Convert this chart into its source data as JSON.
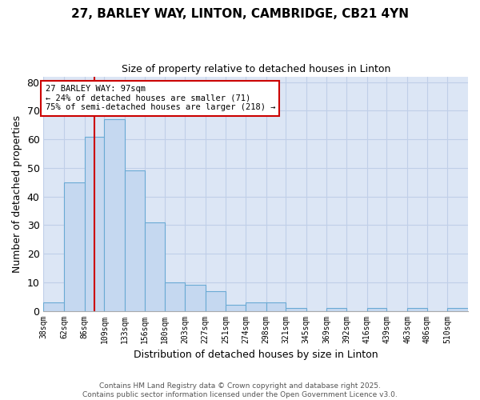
{
  "title1": "27, BARLEY WAY, LINTON, CAMBRIDGE, CB21 4YN",
  "title2": "Size of property relative to detached houses in Linton",
  "xlabel": "Distribution of detached houses by size in Linton",
  "ylabel": "Number of detached properties",
  "bin_edges": [
    38,
    62,
    86,
    109,
    133,
    156,
    180,
    203,
    227,
    251,
    274,
    298,
    321,
    345,
    369,
    392,
    416,
    439,
    463,
    486,
    510
  ],
  "bar_heights": [
    3,
    45,
    61,
    67,
    49,
    31,
    10,
    9,
    7,
    2,
    3,
    3,
    1,
    0,
    1,
    0,
    1,
    0,
    1,
    0,
    1
  ],
  "bar_color": "#c5d8f0",
  "bar_edge_color": "#6aaad4",
  "subject_value": 97,
  "vline_color": "#cc0000",
  "annotation_text": "27 BARLEY WAY: 97sqm\n← 24% of detached houses are smaller (71)\n75% of semi-detached houses are larger (218) →",
  "annotation_box_color": "#ffffff",
  "annotation_border_color": "#cc0000",
  "ylim": [
    0,
    82
  ],
  "yticks": [
    0,
    10,
    20,
    30,
    40,
    50,
    60,
    70,
    80
  ],
  "background_color": "#dce6f5",
  "grid_color": "#c0cfe8",
  "footer_text": "Contains HM Land Registry data © Crown copyright and database right 2025.\nContains public sector information licensed under the Open Government Licence v3.0.",
  "tick_labels": [
    "38sqm",
    "62sqm",
    "86sqm",
    "109sqm",
    "133sqm",
    "156sqm",
    "180sqm",
    "203sqm",
    "227sqm",
    "251sqm",
    "274sqm",
    "298sqm",
    "321sqm",
    "345sqm",
    "369sqm",
    "392sqm",
    "416sqm",
    "439sqm",
    "463sqm",
    "486sqm",
    "510sqm"
  ],
  "figsize": [
    6.0,
    5.0
  ],
  "dpi": 100
}
